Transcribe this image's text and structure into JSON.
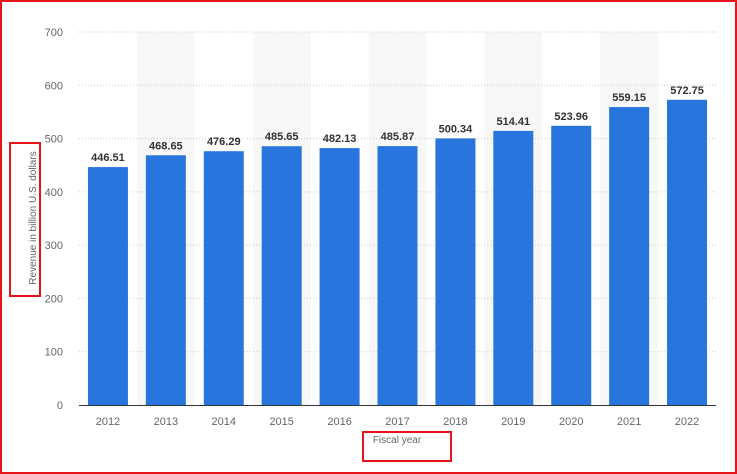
{
  "chart_data": {
    "type": "bar",
    "categories": [
      "2012",
      "2013",
      "2014",
      "2015",
      "2016",
      "2017",
      "2018",
      "2019",
      "2020",
      "2021",
      "2022"
    ],
    "values": [
      446.51,
      468.65,
      476.29,
      485.65,
      482.13,
      485.87,
      500.34,
      514.41,
      523.96,
      559.15,
      572.75
    ],
    "value_labels": [
      "446.51",
      "468.65",
      "476.29",
      "485.65",
      "482.13",
      "485.87",
      "500.34",
      "514.41",
      "523.96",
      "559.15",
      "572.75"
    ],
    "xlabel": "Fiscal year",
    "ylabel": "Revenue in billion U.S. dollars",
    "ylim": [
      0,
      700
    ],
    "yticks": [
      0,
      100,
      200,
      300,
      400,
      500,
      600,
      700
    ],
    "grid": true,
    "bar_color": "#2876dd",
    "band_color": "#f7f7f7",
    "annotation_color": "#e8141b"
  }
}
